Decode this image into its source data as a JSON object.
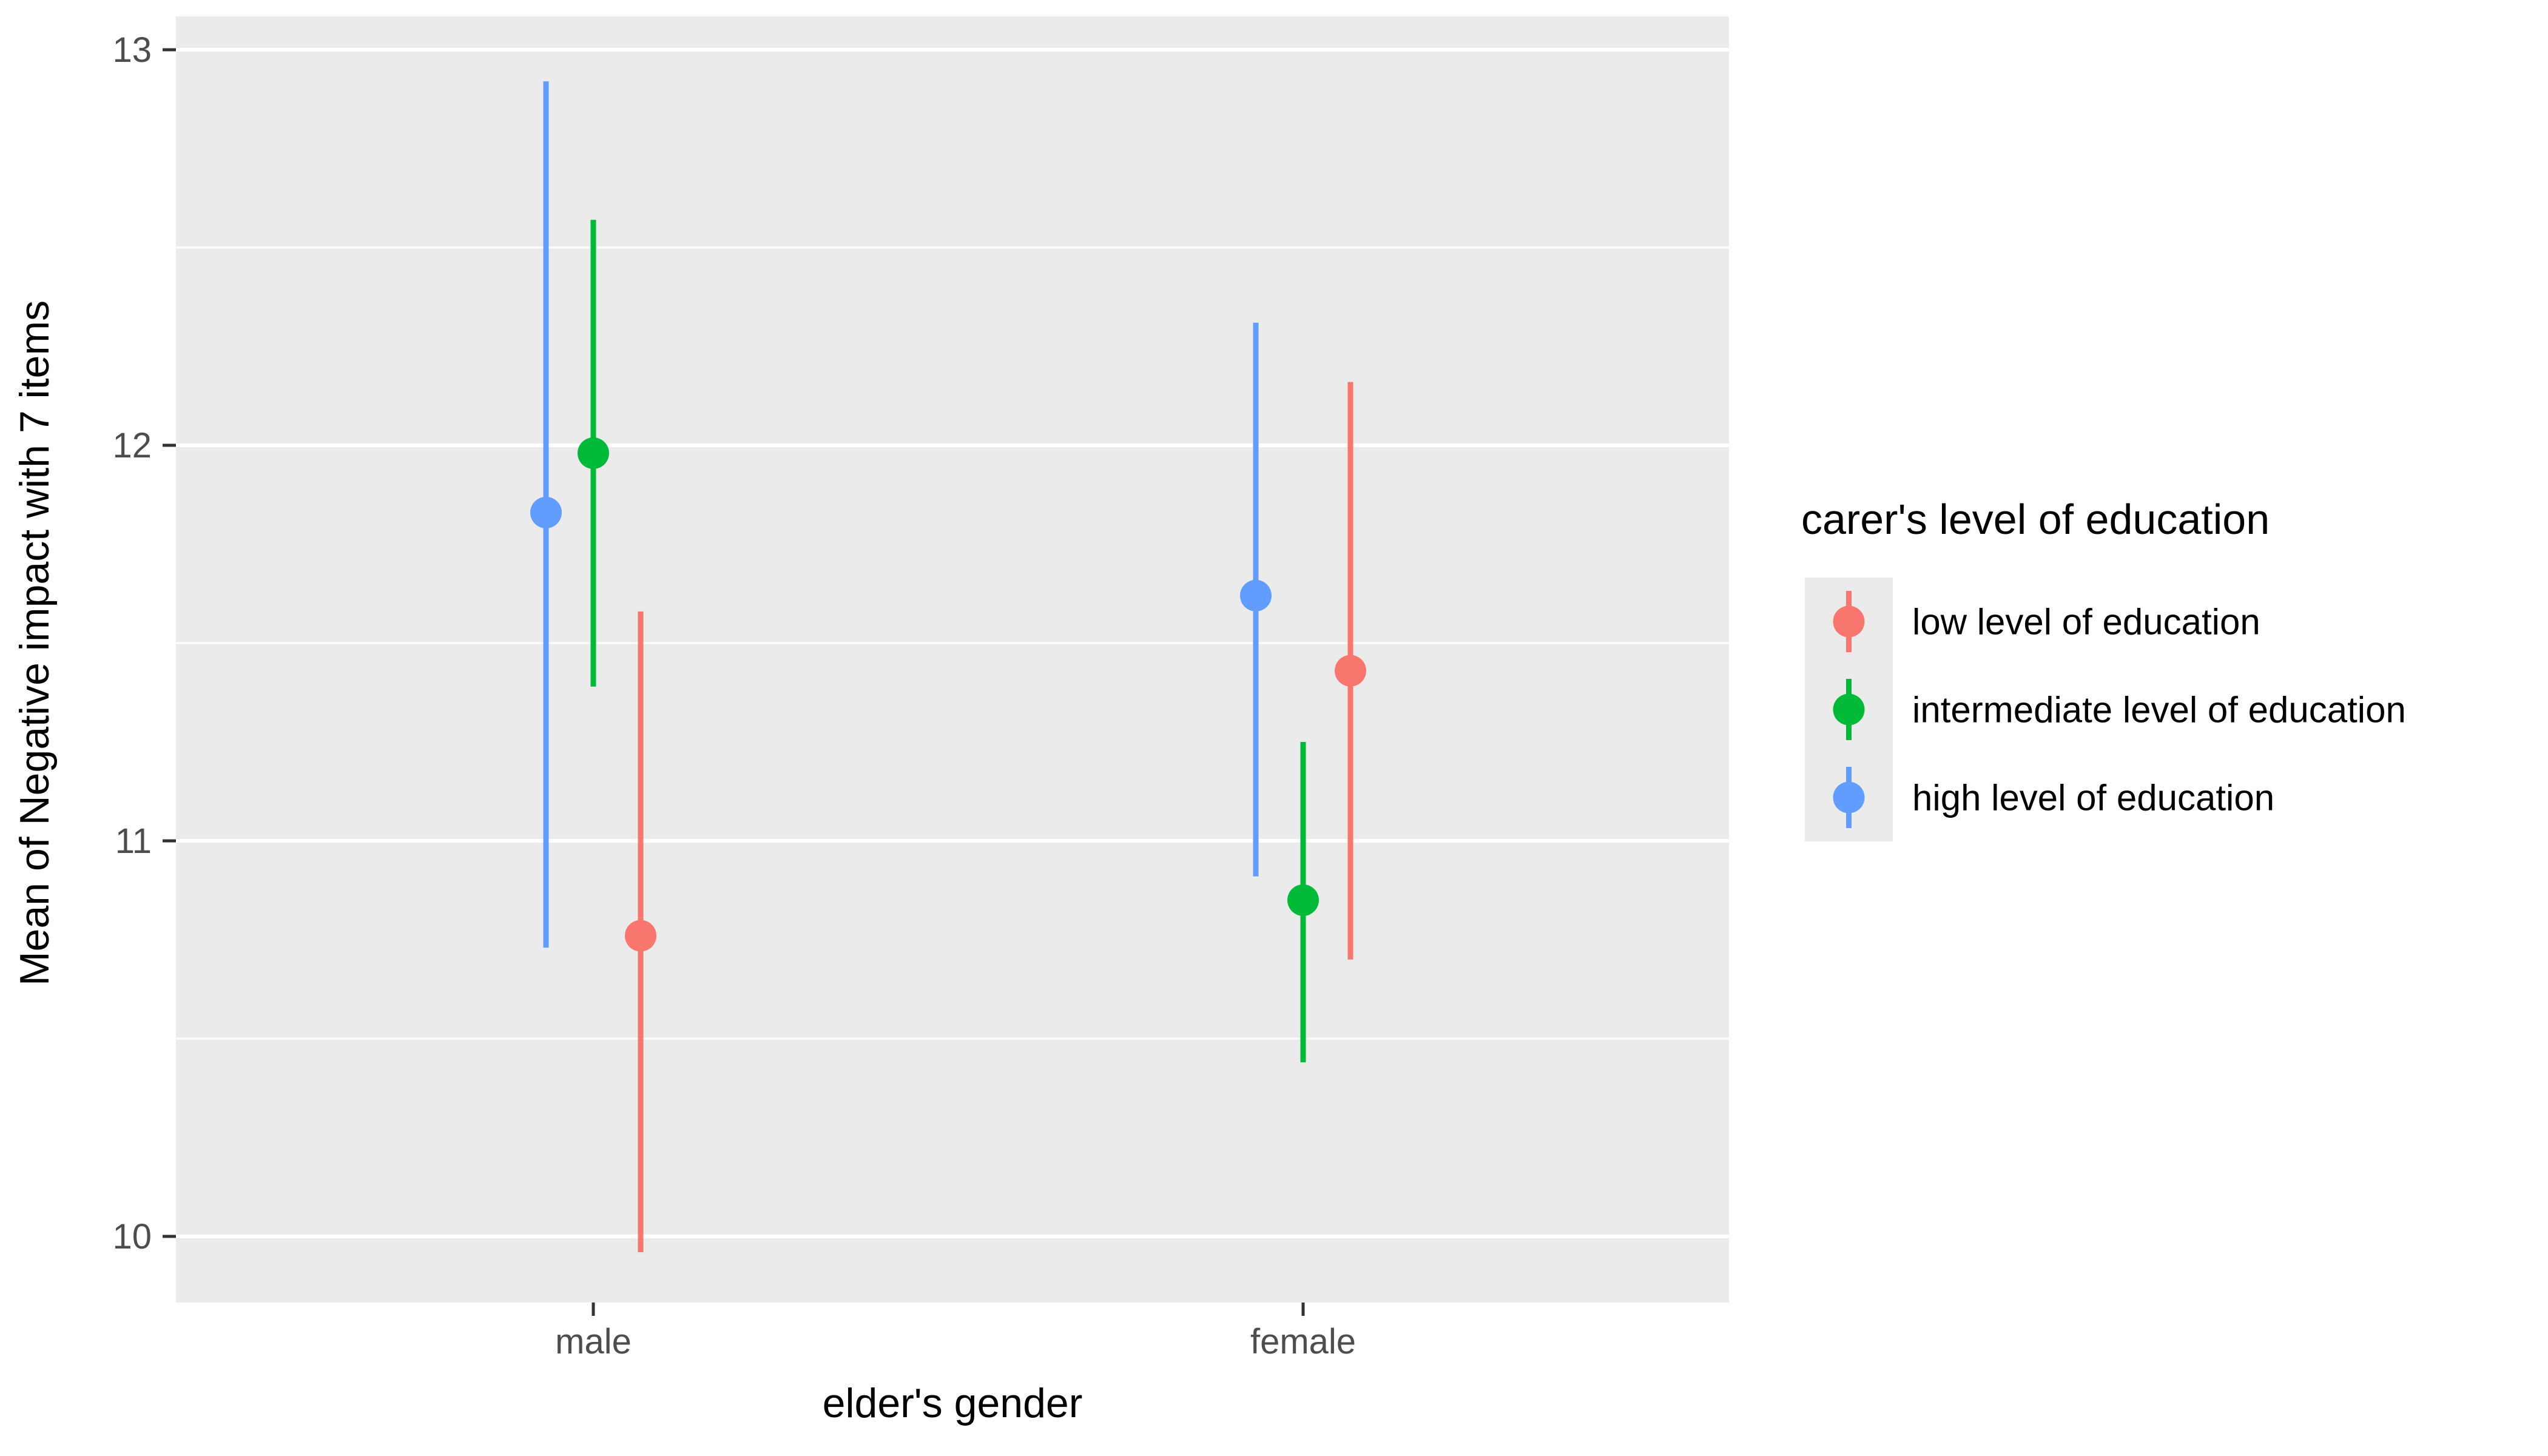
{
  "chart_data": {
    "type": "scatter",
    "subtype": "point-with-errorbars-dodged",
    "title": "",
    "xlabel": "elder's gender",
    "ylabel": "Mean of Negative impact with 7 items",
    "categories": [
      "male",
      "female"
    ],
    "y_ticks": [
      10,
      11,
      12,
      13
    ],
    "y_minor_ticks": [
      10.5,
      11.5,
      12.5
    ],
    "ylim": [
      9.83,
      13.08
    ],
    "grid": true,
    "legend_position": "right",
    "legend_title": "carer's level of education",
    "series": [
      {
        "name": "low level of education",
        "color": "#F8766D",
        "dodge_offset": 1,
        "points": [
          {
            "category": "male",
            "mean": 10.76,
            "lower": 9.96,
            "upper": 11.58
          },
          {
            "category": "female",
            "mean": 11.43,
            "lower": 10.7,
            "upper": 12.16
          }
        ]
      },
      {
        "name": "intermediate level of education",
        "color": "#00BA38",
        "dodge_offset": 0,
        "points": [
          {
            "category": "male",
            "mean": 11.98,
            "lower": 11.39,
            "upper": 12.57
          },
          {
            "category": "female",
            "mean": 10.85,
            "lower": 10.44,
            "upper": 11.25
          }
        ]
      },
      {
        "name": "high level of education",
        "color": "#619CFF",
        "dodge_offset": -1,
        "points": [
          {
            "category": "male",
            "mean": 11.83,
            "lower": 10.73,
            "upper": 12.92
          },
          {
            "category": "female",
            "mean": 11.62,
            "lower": 10.91,
            "upper": 12.31
          }
        ]
      }
    ],
    "colors": {
      "panel_background": "#EBEBEB",
      "grid_line": "#FFFFFF",
      "tick_label": "#4D4D4D",
      "axis_title": "#000000",
      "legend_text": "#000000",
      "tick_mark": "#333333",
      "legend_key_background": "#EBEBEB"
    }
  }
}
